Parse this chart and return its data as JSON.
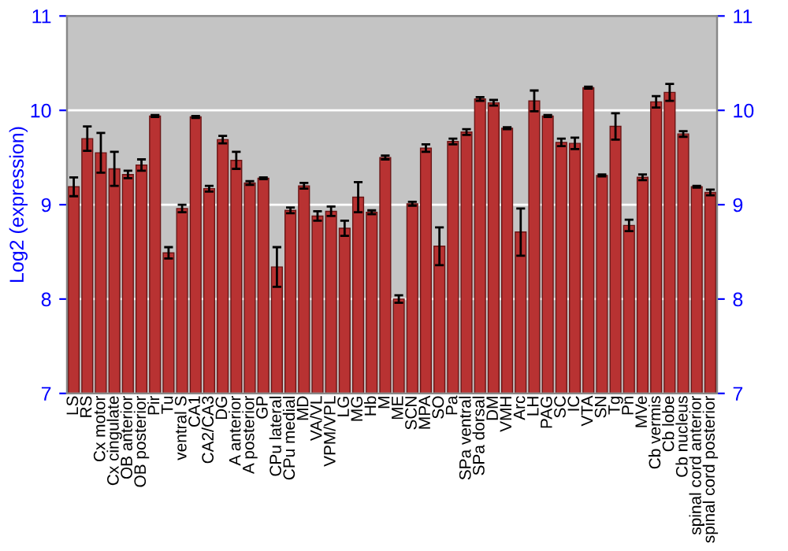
{
  "chart_data": {
    "type": "bar",
    "ylabel": "Log2 (expression)",
    "categories": [
      "LS",
      "RS",
      "Cx motor",
      "Cx cingulate",
      "OB anterior",
      "OB posterior",
      "Pir",
      "Tu",
      "ventral S",
      "CA1",
      "CA2/CA3",
      "DG",
      "A anterior",
      "A posterior",
      "GP",
      "CPu lateral",
      "CPu medial",
      "MD",
      "VA/VL",
      "VPM/VPL",
      "LG",
      "MG",
      "Hb",
      "M",
      "ME",
      "SCN",
      "MPA",
      "SO",
      "Pa",
      "SPa ventral",
      "SPa dorsal",
      "DM",
      "VMH",
      "Arc",
      "LH",
      "PAG",
      "SC",
      "IC",
      "VTA",
      "SN",
      "Tg",
      "Pn",
      "MVe",
      "Cb vermis",
      "Cb lobe",
      "Cb nucleus",
      "spinal cord anterior",
      "spinal cord posterior"
    ],
    "values": [
      9.19,
      9.7,
      9.55,
      9.38,
      9.32,
      9.42,
      9.94,
      8.49,
      8.96,
      9.93,
      9.17,
      9.69,
      9.47,
      9.23,
      9.28,
      8.34,
      8.94,
      9.2,
      8.88,
      8.93,
      8.75,
      9.08,
      8.92,
      9.5,
      8.0,
      9.01,
      9.6,
      8.56,
      9.67,
      9.77,
      10.12,
      10.08,
      9.81,
      8.71,
      10.1,
      9.94,
      9.66,
      9.65,
      10.24,
      9.31,
      9.83,
      8.78,
      9.29,
      10.09,
      10.19,
      9.75,
      9.19,
      9.13
    ],
    "errors": [
      0.1,
      0.13,
      0.21,
      0.18,
      0.04,
      0.06,
      0.01,
      0.06,
      0.04,
      0.01,
      0.03,
      0.04,
      0.09,
      0.02,
      0.01,
      0.21,
      0.03,
      0.03,
      0.05,
      0.05,
      0.08,
      0.16,
      0.02,
      0.02,
      0.04,
      0.02,
      0.04,
      0.2,
      0.03,
      0.03,
      0.02,
      0.03,
      0.01,
      0.25,
      0.11,
      0.01,
      0.04,
      0.06,
      0.01,
      0.01,
      0.14,
      0.06,
      0.03,
      0.06,
      0.09,
      0.03,
      0.01,
      0.03
    ],
    "color": "#b83232",
    "ylim": [
      7,
      11
    ],
    "yticks": [
      7,
      8,
      9,
      10,
      11
    ],
    "y2lim": [
      7,
      11
    ],
    "y2ticks": [
      7,
      8,
      9,
      10,
      11
    ],
    "grid": "y"
  }
}
